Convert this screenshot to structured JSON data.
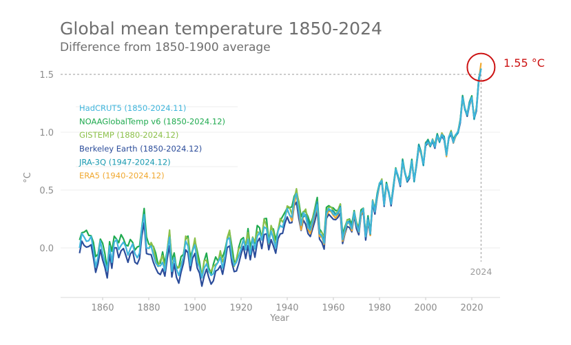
{
  "chart_data": {
    "type": "line",
    "title": "Global mean temperature 1850-2024",
    "subtitle": "Difference from 1850-1900 average",
    "xlabel": "Year",
    "ylabel": "°C",
    "xlim": [
      1845,
      2032
    ],
    "ylim": [
      -0.45,
      1.7
    ],
    "x_ticks": [
      1860,
      1880,
      1900,
      1920,
      1940,
      1960,
      1980,
      2000,
      2020
    ],
    "y_ticks": [
      0.0,
      0.5,
      1.0,
      1.5
    ],
    "y_tick_labels": [
      "0.0",
      "0.5",
      "1.0",
      "1.5"
    ],
    "grid": "horizontal",
    "legend_placement": "top-left",
    "reference_line": {
      "value": 1.5,
      "style": "dashed"
    },
    "highlight_year": {
      "year": 2024,
      "label": "2024"
    },
    "annotation": {
      "text": "1.55 °C",
      "year": 2024,
      "value": 1.55,
      "color": "#cc1111"
    },
    "series": [
      {
        "name": "HadCRUT5 (1850-2024.11)",
        "color": "#3fb5dc",
        "start": 1850,
        "offset": 0.0
      },
      {
        "name": "NOAAGlobalTemp v6 (1850-2024.12)",
        "color": "#1faa4f",
        "start": 1850,
        "offset": 0.05
      },
      {
        "name": "GISTEMP (1880-2024.12)",
        "color": "#8cc04a",
        "start": 1880,
        "offset": 0.03
      },
      {
        "name": "Berkeley Earth (1850-2024.12)",
        "color": "#2b4c9a",
        "start": 1850,
        "offset": -0.06
      },
      {
        "name": "JRA-3Q (1947-2024.12)",
        "color": "#1a9ab0",
        "start": 1947,
        "offset": 0.01
      },
      {
        "name": "ERA5 (1940-2024.12)",
        "color": "#f0a830",
        "start": 1940,
        "offset": -0.02
      }
    ],
    "base_years_start": 1850,
    "base_values": [
      0.0,
      0.1,
      0.1,
      0.08,
      0.05,
      0.08,
      0.0,
      -0.15,
      -0.1,
      0.05,
      -0.02,
      -0.12,
      -0.22,
      0.02,
      -0.1,
      0.04,
      0.05,
      0.0,
      0.04,
      0.03,
      0.0,
      -0.04,
      0.0,
      0.01,
      -0.05,
      -0.06,
      -0.05,
      0.15,
      0.3,
      0.02,
      -0.02,
      0.0,
      -0.04,
      -0.12,
      -0.18,
      -0.16,
      -0.1,
      -0.2,
      -0.05,
      0.1,
      -0.18,
      -0.1,
      -0.2,
      -0.22,
      -0.15,
      -0.1,
      0.05,
      0.04,
      -0.15,
      -0.05,
      0.03,
      -0.1,
      -0.18,
      -0.28,
      -0.16,
      -0.12,
      -0.22,
      -0.25,
      -0.2,
      -0.15,
      -0.15,
      -0.08,
      -0.15,
      -0.08,
      0.05,
      0.1,
      -0.06,
      -0.17,
      -0.14,
      -0.05,
      0.0,
      0.05,
      -0.02,
      0.1,
      -0.06,
      0.06,
      0.0,
      0.12,
      0.12,
      0.05,
      0.2,
      0.18,
      0.02,
      0.14,
      0.1,
      0.0,
      0.12,
      0.2,
      0.2,
      0.25,
      0.32,
      0.3,
      0.28,
      0.4,
      0.46,
      0.34,
      0.2,
      0.28,
      0.28,
      0.2,
      0.15,
      0.22,
      0.3,
      0.38,
      0.12,
      0.1,
      0.05,
      0.3,
      0.33,
      0.32,
      0.3,
      0.28,
      0.3,
      0.35,
      0.08,
      0.15,
      0.22,
      0.22,
      0.17,
      0.3,
      0.2,
      0.15,
      0.3,
      0.33,
      0.1,
      0.25,
      0.12,
      0.4,
      0.32,
      0.45,
      0.55,
      0.58,
      0.38,
      0.55,
      0.48,
      0.38,
      0.52,
      0.68,
      0.62,
      0.55,
      0.75,
      0.65,
      0.58,
      0.62,
      0.75,
      0.58,
      0.72,
      0.88,
      0.82,
      0.72,
      0.9,
      0.92,
      0.88,
      0.93,
      0.88,
      0.97,
      0.92,
      0.98,
      0.95,
      0.8,
      0.95,
      1.0,
      0.92,
      0.97,
      1.0,
      1.1,
      1.3,
      1.2,
      1.15,
      1.25,
      1.3,
      1.12,
      1.2,
      1.45,
      1.55
    ]
  }
}
